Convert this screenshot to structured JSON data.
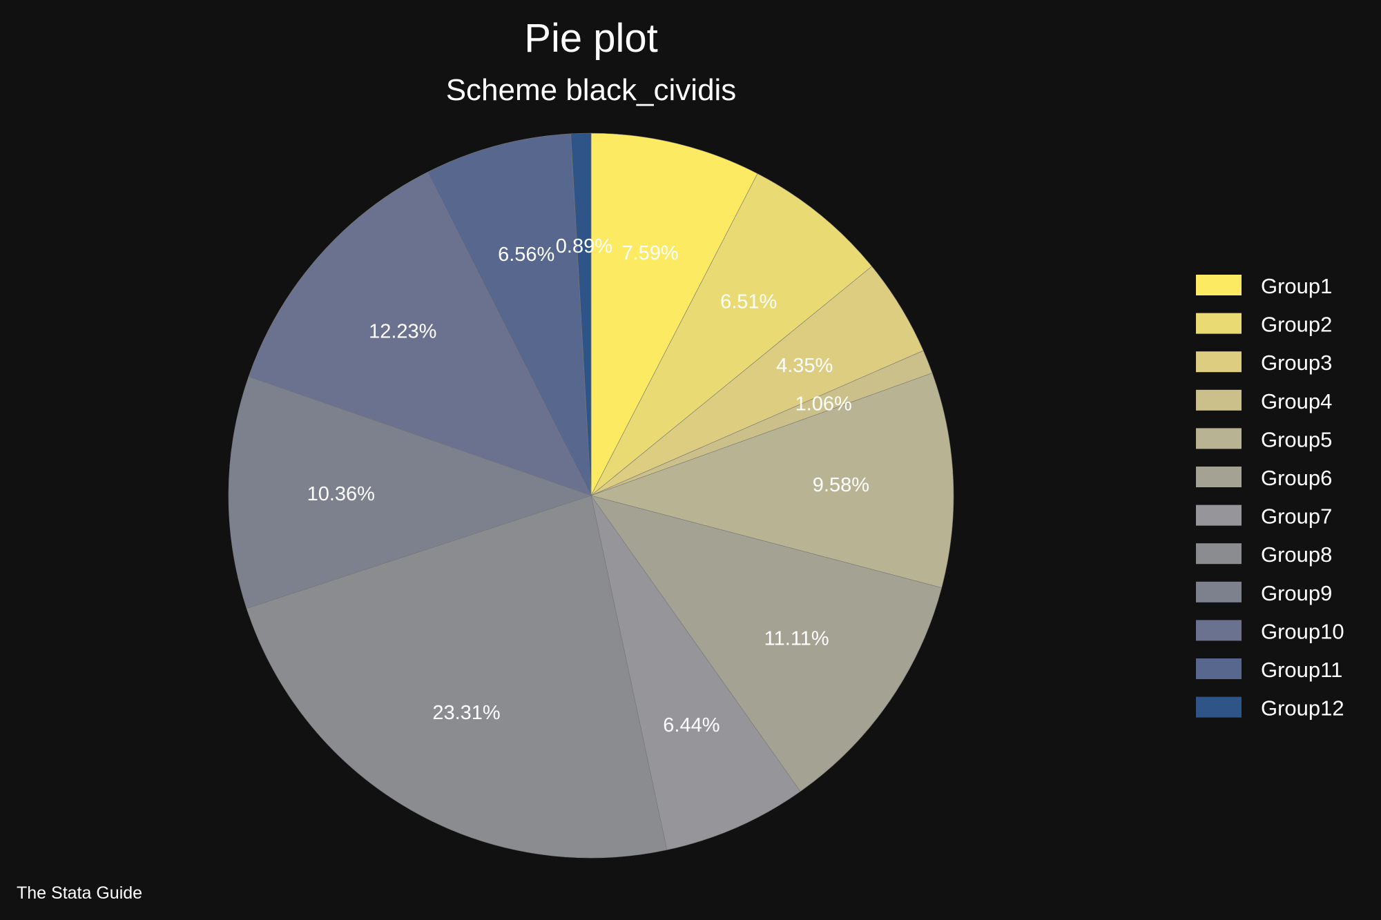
{
  "chart_data": {
    "type": "pie",
    "title": "Pie plot",
    "subtitle": "Scheme black_cividis",
    "note": "The Stata Guide",
    "legend_position": "right",
    "background": "#111111",
    "categories": [
      "Group1",
      "Group2",
      "Group3",
      "Group4",
      "Group5",
      "Group6",
      "Group7",
      "Group8",
      "Group9",
      "Group10",
      "Group11",
      "Group12"
    ],
    "values": [
      7.59,
      6.51,
      4.35,
      1.06,
      9.58,
      11.11,
      6.44,
      23.31,
      10.36,
      12.23,
      6.56,
      0.89
    ],
    "labels": [
      "7.59%",
      "6.51%",
      "4.35%",
      "1.06%",
      "9.58%",
      "11.11%",
      "6.44%",
      "23.31%",
      "10.36%",
      "12.23%",
      "6.56%",
      "0.89%"
    ],
    "colors": [
      "#FDEA63",
      "#EADA73",
      "#DCCD81",
      "#CBC08A",
      "#B8B393",
      "#A3A293",
      "#96969A",
      "#8B8C8F",
      "#7C818D",
      "#6B7290",
      "#58678E",
      "#2F5488"
    ]
  }
}
